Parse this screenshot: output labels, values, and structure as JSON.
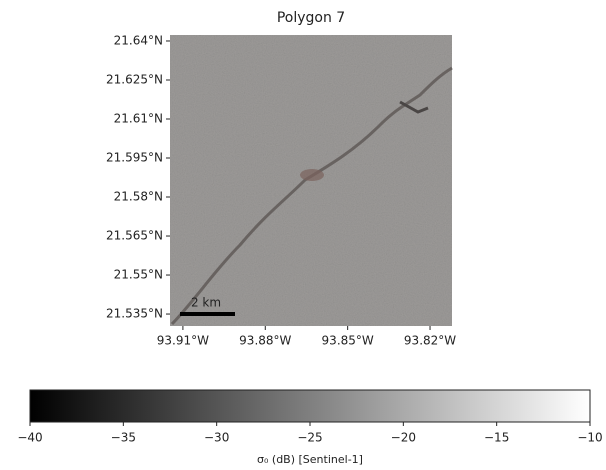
{
  "chart_data": {
    "type": "image",
    "title": "Polygon 7",
    "xlim": [
      -93.9147,
      -93.812
    ],
    "ylim": [
      21.5304,
      21.6423
    ],
    "xticks": [
      {
        "value": -93.91,
        "label": "93.91°W"
      },
      {
        "value": -93.88,
        "label": "93.88°W"
      },
      {
        "value": -93.85,
        "label": "93.85°W"
      },
      {
        "value": -93.82,
        "label": "93.82°W"
      }
    ],
    "yticks": [
      {
        "value": 21.64,
        "label": "21.64°N"
      },
      {
        "value": 21.625,
        "label": "21.625°N"
      },
      {
        "value": 21.61,
        "label": "21.61°N"
      },
      {
        "value": 21.595,
        "label": "21.595°N"
      },
      {
        "value": 21.58,
        "label": "21.58°N"
      },
      {
        "value": 21.565,
        "label": "21.565°N"
      },
      {
        "value": 21.55,
        "label": "21.55°N"
      },
      {
        "value": 21.535,
        "label": "21.535°N"
      }
    ],
    "scale_bar": "2 km",
    "colorbar": {
      "label": "σ₀ (dB) [Sentinel-1]",
      "lim": [
        -40,
        -10
      ],
      "ticks": [
        {
          "value": -40,
          "label": "−40"
        },
        {
          "value": -35,
          "label": "−35"
        },
        {
          "value": -30,
          "label": "−30"
        },
        {
          "value": -25,
          "label": "−25"
        },
        {
          "value": -20,
          "label": "−20"
        },
        {
          "value": -15,
          "label": "−15"
        },
        {
          "value": -10,
          "label": "−10"
        }
      ]
    }
  }
}
